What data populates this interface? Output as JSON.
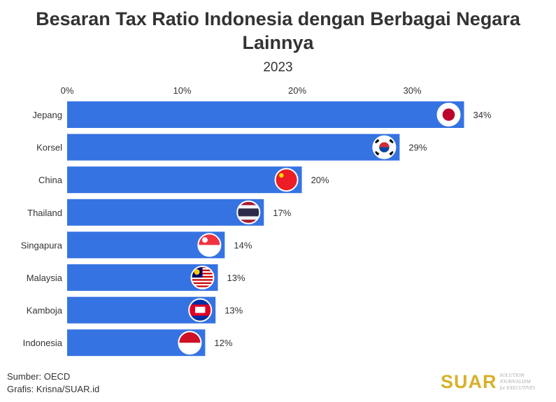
{
  "chart_data": {
    "type": "bar",
    "orientation": "horizontal",
    "title": "Besaran Tax Ratio Indonesia dengan Berbagai Negara Lainnya",
    "subtitle": "2023",
    "categories": [
      "Jepang",
      "Korsel",
      "China",
      "Thailand",
      "Singapura",
      "Malaysia",
      "Kamboja",
      "Indonesia"
    ],
    "values": [
      34.5,
      28.9,
      20.4,
      17.1,
      13.7,
      13.1,
      12.9,
      12.0
    ],
    "data_labels": [
      "34%",
      "29%",
      "20%",
      "17%",
      "14%",
      "13%",
      "13%",
      "12%"
    ],
    "flags": [
      "japan-flag",
      "south-korea-flag",
      "china-flag",
      "thailand-flag",
      "singapore-flag",
      "malaysia-flag",
      "cambodia-flag",
      "indonesia-flag"
    ],
    "xticks": [
      "0%",
      "10%",
      "20%",
      "30%"
    ],
    "xtick_values": [
      0,
      10,
      20,
      30
    ],
    "xlim": [
      0,
      35
    ],
    "axis_position": "top",
    "grid": false,
    "bar_color": "#3573e2"
  },
  "footer": {
    "source": "Sumber: OECD",
    "credit": "Grafis: Krisna/SUAR.id"
  },
  "logo": {
    "word": "SUAR",
    "tagline1": "SOLUTION JOURNALISM",
    "tagline2": "for EXECUTIVES"
  }
}
